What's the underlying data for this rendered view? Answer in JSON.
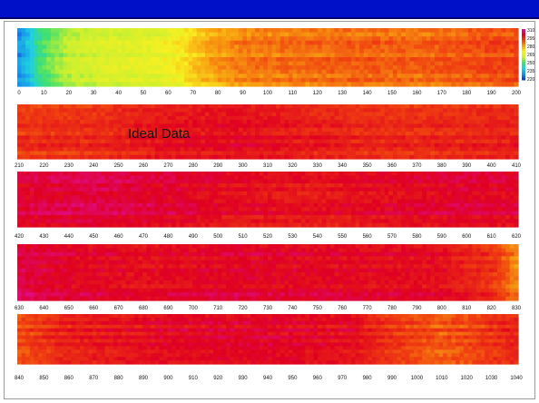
{
  "chart_data": {
    "type": "heatmap",
    "title": "",
    "xlabel": "",
    "ylabel": "",
    "annotation": "Ideal Data",
    "colormap": [
      "#1030c8",
      "#1890f0",
      "#20d0e0",
      "#40e070",
      "#c8f030",
      "#f8f020",
      "#f8a010",
      "#f04010",
      "#e00020",
      "#e010a0"
    ],
    "colorbar": {
      "labels": [
        "310",
        "295",
        "280",
        "265",
        "250",
        "235",
        "220"
      ],
      "range": [
        220,
        310
      ]
    },
    "strips": [
      {
        "name": "strip-1",
        "xrange": [
          0,
          200
        ],
        "ticks": [
          "0",
          "10",
          "20",
          "30",
          "40",
          "50",
          "60",
          "70",
          "80",
          "90",
          "100",
          "110",
          "120",
          "130",
          "140",
          "150",
          "160",
          "170",
          "180",
          "190",
          "200"
        ],
        "profile": [
          [
            0,
            228
          ],
          [
            4,
            235
          ],
          [
            10,
            248
          ],
          [
            20,
            258
          ],
          [
            35,
            262
          ],
          [
            55,
            264
          ],
          [
            65,
            268
          ],
          [
            75,
            276
          ],
          [
            90,
            282
          ],
          [
            110,
            283
          ],
          [
            140,
            285
          ],
          [
            160,
            284
          ],
          [
            185,
            287
          ],
          [
            200,
            288
          ]
        ]
      },
      {
        "name": "strip-2",
        "xrange": [
          210,
          410
        ],
        "ticks": [
          "210",
          "220",
          "230",
          "240",
          "250",
          "260",
          "270",
          "280",
          "290",
          "300",
          "310",
          "320",
          "330",
          "340",
          "350",
          "360",
          "370",
          "380",
          "390",
          "400",
          "410"
        ],
        "profile": [
          [
            210,
            291
          ],
          [
            240,
            292
          ],
          [
            270,
            296
          ],
          [
            300,
            297
          ],
          [
            330,
            294
          ],
          [
            360,
            292
          ],
          [
            390,
            293
          ],
          [
            410,
            294
          ]
        ]
      },
      {
        "name": "strip-3",
        "xrange": [
          420,
          620
        ],
        "ticks": [
          "420",
          "430",
          "440",
          "450",
          "460",
          "470",
          "480",
          "490",
          "500",
          "510",
          "520",
          "530",
          "540",
          "550",
          "560",
          "570",
          "580",
          "590",
          "600",
          "610",
          "620"
        ],
        "profile": [
          [
            420,
            300
          ],
          [
            450,
            302
          ],
          [
            480,
            300
          ],
          [
            510,
            297
          ],
          [
            540,
            296
          ],
          [
            570,
            298
          ],
          [
            600,
            300
          ],
          [
            620,
            299
          ]
        ]
      },
      {
        "name": "strip-4",
        "xrange": [
          630,
          830
        ],
        "ticks": [
          "630",
          "640",
          "650",
          "660",
          "670",
          "680",
          "690",
          "700",
          "710",
          "720",
          "730",
          "740",
          "750",
          "760",
          "770",
          "780",
          "790",
          "800",
          "810",
          "820",
          "830"
        ],
        "profile": [
          [
            630,
            303
          ],
          [
            650,
            300
          ],
          [
            680,
            298
          ],
          [
            720,
            300
          ],
          [
            760,
            299
          ],
          [
            800,
            298
          ],
          [
            820,
            292
          ],
          [
            830,
            282
          ]
        ]
      },
      {
        "name": "strip-5",
        "xrange": [
          840,
          1040
        ],
        "ticks": [
          "840",
          "850",
          "860",
          "870",
          "880",
          "890",
          "900",
          "910",
          "920",
          "930",
          "940",
          "950",
          "960",
          "970",
          "980",
          "990",
          "1000",
          "1010",
          "1020",
          "1030",
          "1040"
        ],
        "profile": [
          [
            840,
            288
          ],
          [
            860,
            294
          ],
          [
            900,
            298
          ],
          [
            940,
            299
          ],
          [
            975,
            297
          ],
          [
            985,
            292
          ],
          [
            1010,
            286
          ],
          [
            1025,
            290
          ],
          [
            1040,
            294
          ]
        ]
      }
    ]
  }
}
